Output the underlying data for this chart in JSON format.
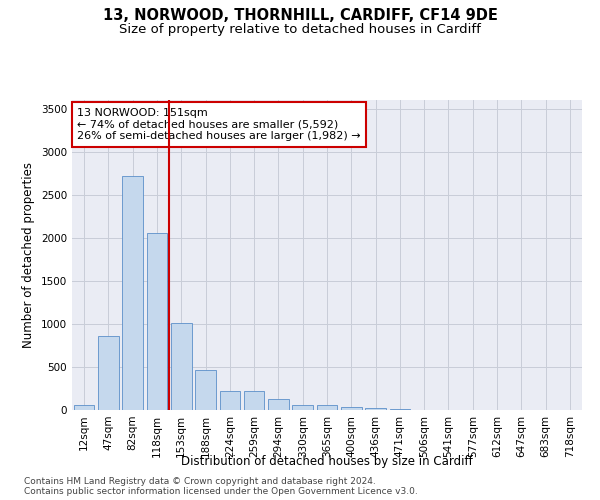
{
  "title": "13, NORWOOD, THORNHILL, CARDIFF, CF14 9DE",
  "subtitle": "Size of property relative to detached houses in Cardiff",
  "xlabel": "Distribution of detached houses by size in Cardiff",
  "ylabel": "Number of detached properties",
  "footnote1": "Contains HM Land Registry data © Crown copyright and database right 2024.",
  "footnote2": "Contains public sector information licensed under the Open Government Licence v3.0.",
  "annotation_line1": "13 NORWOOD: 151sqm",
  "annotation_line2": "← 74% of detached houses are smaller (5,592)",
  "annotation_line3": "26% of semi-detached houses are larger (1,982) →",
  "bar_color": "#c5d8ed",
  "bar_edge_color": "#5b8fc9",
  "grid_color": "#c8cdd8",
  "bg_color": "#eaecf4",
  "vline_color": "#cc0000",
  "vline_x_index": 3.5,
  "categories": [
    "12sqm",
    "47sqm",
    "82sqm",
    "118sqm",
    "153sqm",
    "188sqm",
    "224sqm",
    "259sqm",
    "294sqm",
    "330sqm",
    "365sqm",
    "400sqm",
    "436sqm",
    "471sqm",
    "506sqm",
    "541sqm",
    "577sqm",
    "612sqm",
    "647sqm",
    "683sqm",
    "718sqm"
  ],
  "values": [
    55,
    855,
    2720,
    2060,
    1010,
    460,
    220,
    220,
    130,
    55,
    55,
    30,
    20,
    10,
    5,
    3,
    2,
    1,
    1,
    1,
    1
  ],
  "ylim": [
    0,
    3600
  ],
  "yticks": [
    0,
    500,
    1000,
    1500,
    2000,
    2500,
    3000,
    3500
  ],
  "title_fontsize": 10.5,
  "subtitle_fontsize": 9.5,
  "axis_label_fontsize": 8.5,
  "tick_fontsize": 7.5,
  "annotation_fontsize": 8,
  "footnote_fontsize": 6.5
}
